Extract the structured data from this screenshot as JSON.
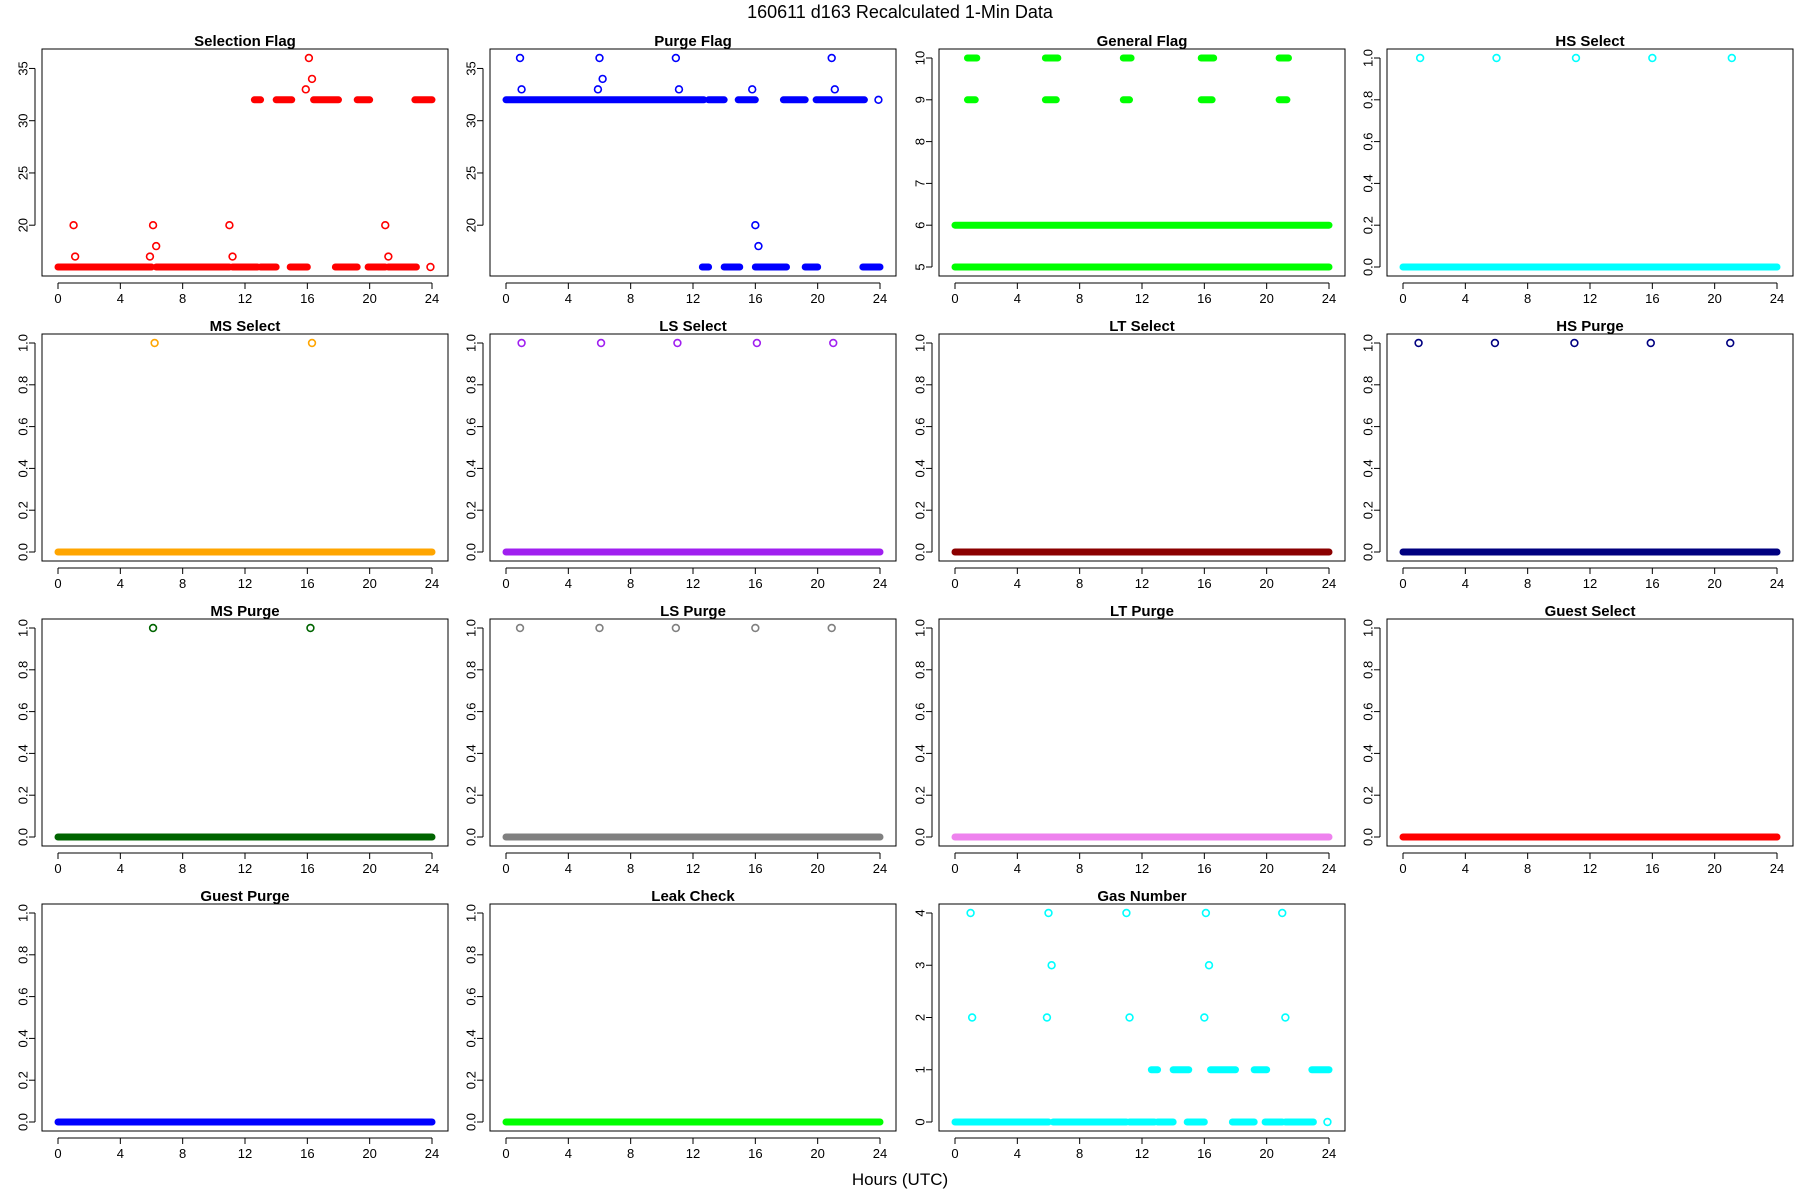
{
  "header": {
    "title": "160611    d163    Recalculated 1-Min Data",
    "xlabel": "Hours (UTC)"
  },
  "chart_data": [
    {
      "type": "scatter",
      "title": "Selection Flag",
      "color": "#ff0000",
      "marker": "open-circle",
      "xlim": [
        0,
        24
      ],
      "xticks": [
        0,
        4,
        8,
        12,
        16,
        20,
        24
      ],
      "ylim": [
        16,
        36
      ],
      "yticks": [
        20,
        25,
        30,
        35
      ],
      "segments": [
        {
          "x": [
            0,
            6
          ],
          "y": 16
        },
        {
          "x": [
            6.3,
            11
          ],
          "y": 16
        },
        {
          "x": [
            11.2,
            12.8
          ],
          "y": 16
        },
        {
          "x": [
            13.0,
            14.0
          ],
          "y": 16
        },
        {
          "x": [
            14.9,
            16.0
          ],
          "y": 16
        },
        {
          "x": [
            17.8,
            19.2
          ],
          "y": 16
        },
        {
          "x": [
            19.9,
            21.0
          ],
          "y": 16
        },
        {
          "x": [
            21.2,
            23.0
          ],
          "y": 16
        },
        {
          "x": [
            12.6,
            13.0
          ],
          "y": 32
        },
        {
          "x": [
            14.0,
            15.0
          ],
          "y": 32
        },
        {
          "x": [
            16.4,
            18.0
          ],
          "y": 32
        },
        {
          "x": [
            19.2,
            20.0
          ],
          "y": 32
        },
        {
          "x": [
            22.9,
            24.0
          ],
          "y": 32
        }
      ],
      "points": [
        {
          "x": 1.0,
          "y": 20
        },
        {
          "x": 1.1,
          "y": 17
        },
        {
          "x": 5.9,
          "y": 17
        },
        {
          "x": 6.1,
          "y": 20
        },
        {
          "x": 6.3,
          "y": 18
        },
        {
          "x": 11.0,
          "y": 20
        },
        {
          "x": 11.2,
          "y": 17
        },
        {
          "x": 15.9,
          "y": 33
        },
        {
          "x": 16.1,
          "y": 36
        },
        {
          "x": 16.3,
          "y": 34
        },
        {
          "x": 21.0,
          "y": 20
        },
        {
          "x": 21.2,
          "y": 17
        },
        {
          "x": 23.9,
          "y": 16
        }
      ]
    },
    {
      "type": "scatter",
      "title": "Purge Flag",
      "color": "#0000ff",
      "marker": "open-circle",
      "xlim": [
        0,
        24
      ],
      "xticks": [
        0,
        4,
        8,
        12,
        16,
        20,
        24
      ],
      "ylim": [
        16,
        36
      ],
      "yticks": [
        20,
        25,
        30,
        35
      ],
      "segments": [
        {
          "x": [
            0,
            12.7
          ],
          "y": 32
        },
        {
          "x": [
            13.0,
            14.0
          ],
          "y": 32
        },
        {
          "x": [
            14.9,
            16.0
          ],
          "y": 32
        },
        {
          "x": [
            17.8,
            19.2
          ],
          "y": 32
        },
        {
          "x": [
            19.9,
            23.0
          ],
          "y": 32
        },
        {
          "x": [
            12.6,
            13.0
          ],
          "y": 16
        },
        {
          "x": [
            14.0,
            15.0
          ],
          "y": 16
        },
        {
          "x": [
            16.0,
            18.0
          ],
          "y": 16
        },
        {
          "x": [
            19.2,
            20.0
          ],
          "y": 16
        },
        {
          "x": [
            22.9,
            24.0
          ],
          "y": 16
        }
      ],
      "points": [
        {
          "x": 0.9,
          "y": 36
        },
        {
          "x": 1.0,
          "y": 33
        },
        {
          "x": 5.9,
          "y": 33
        },
        {
          "x": 6.0,
          "y": 36
        },
        {
          "x": 6.2,
          "y": 34
        },
        {
          "x": 10.9,
          "y": 36
        },
        {
          "x": 11.1,
          "y": 33
        },
        {
          "x": 15.8,
          "y": 33
        },
        {
          "x": 16.0,
          "y": 20
        },
        {
          "x": 16.2,
          "y": 18
        },
        {
          "x": 20.9,
          "y": 36
        },
        {
          "x": 21.1,
          "y": 33
        },
        {
          "x": 23.9,
          "y": 32
        }
      ]
    },
    {
      "type": "scatter",
      "title": "General Flag",
      "color": "#00ff00",
      "marker": "open-circle",
      "xlim": [
        0,
        24
      ],
      "xticks": [
        0,
        4,
        8,
        12,
        16,
        20,
        24
      ],
      "ylim": [
        5,
        10
      ],
      "yticks": [
        5,
        6,
        7,
        8,
        9,
        10
      ],
      "segments": [
        {
          "x": [
            0,
            24
          ],
          "y": 5
        },
        {
          "x": [
            0,
            24
          ],
          "y": 6
        },
        {
          "x": [
            0.8,
            1.4
          ],
          "y": 10
        },
        {
          "x": [
            5.8,
            6.6
          ],
          "y": 10
        },
        {
          "x": [
            10.8,
            11.3
          ],
          "y": 10
        },
        {
          "x": [
            15.8,
            16.6
          ],
          "y": 10
        },
        {
          "x": [
            20.8,
            21.4
          ],
          "y": 10
        },
        {
          "x": [
            0.8,
            1.3
          ],
          "y": 9
        },
        {
          "x": [
            5.8,
            6.5
          ],
          "y": 9
        },
        {
          "x": [
            10.8,
            11.2
          ],
          "y": 9
        },
        {
          "x": [
            15.8,
            16.5
          ],
          "y": 9
        },
        {
          "x": [
            20.8,
            21.3
          ],
          "y": 9
        }
      ],
      "points": []
    },
    {
      "type": "scatter",
      "title": "HS Select",
      "color": "#00ffff",
      "marker": "open-circle",
      "xlim": [
        0,
        24
      ],
      "xticks": [
        0,
        4,
        8,
        12,
        16,
        20,
        24
      ],
      "ylim": [
        0,
        1
      ],
      "yticks": [
        0.0,
        0.2,
        0.4,
        0.6,
        0.8,
        1.0
      ],
      "segments": [
        {
          "x": [
            0,
            24
          ],
          "y": 0
        }
      ],
      "points": [
        {
          "x": 1.1,
          "y": 1
        },
        {
          "x": 6.0,
          "y": 1
        },
        {
          "x": 11.1,
          "y": 1
        },
        {
          "x": 16.0,
          "y": 1
        },
        {
          "x": 21.1,
          "y": 1
        }
      ]
    },
    {
      "type": "scatter",
      "title": "MS Select",
      "color": "#ffa500",
      "marker": "open-circle",
      "xlim": [
        0,
        24
      ],
      "xticks": [
        0,
        4,
        8,
        12,
        16,
        20,
        24
      ],
      "ylim": [
        0,
        1
      ],
      "yticks": [
        0.0,
        0.2,
        0.4,
        0.6,
        0.8,
        1.0
      ],
      "segments": [
        {
          "x": [
            0,
            24
          ],
          "y": 0
        }
      ],
      "points": [
        {
          "x": 6.2,
          "y": 1
        },
        {
          "x": 16.3,
          "y": 1
        }
      ]
    },
    {
      "type": "scatter",
      "title": "LS Select",
      "color": "#a020f0",
      "marker": "open-circle",
      "xlim": [
        0,
        24
      ],
      "xticks": [
        0,
        4,
        8,
        12,
        16,
        20,
        24
      ],
      "ylim": [
        0,
        1
      ],
      "yticks": [
        0.0,
        0.2,
        0.4,
        0.6,
        0.8,
        1.0
      ],
      "segments": [
        {
          "x": [
            0,
            24
          ],
          "y": 0
        }
      ],
      "points": [
        {
          "x": 1.0,
          "y": 1
        },
        {
          "x": 6.1,
          "y": 1
        },
        {
          "x": 11.0,
          "y": 1
        },
        {
          "x": 16.1,
          "y": 1
        },
        {
          "x": 21.0,
          "y": 1
        }
      ]
    },
    {
      "type": "scatter",
      "title": "LT Select",
      "color": "#8b0000",
      "marker": "open-circle",
      "xlim": [
        0,
        24
      ],
      "xticks": [
        0,
        4,
        8,
        12,
        16,
        20,
        24
      ],
      "ylim": [
        0,
        1
      ],
      "yticks": [
        0.0,
        0.2,
        0.4,
        0.6,
        0.8,
        1.0
      ],
      "segments": [
        {
          "x": [
            0,
            24
          ],
          "y": 0
        }
      ],
      "points": []
    },
    {
      "type": "scatter",
      "title": "HS Purge",
      "color": "#000080",
      "marker": "open-circle",
      "xlim": [
        0,
        24
      ],
      "xticks": [
        0,
        4,
        8,
        12,
        16,
        20,
        24
      ],
      "ylim": [
        0,
        1
      ],
      "yticks": [
        0.0,
        0.2,
        0.4,
        0.6,
        0.8,
        1.0
      ],
      "segments": [
        {
          "x": [
            0,
            24
          ],
          "y": 0
        }
      ],
      "points": [
        {
          "x": 1.0,
          "y": 1
        },
        {
          "x": 5.9,
          "y": 1
        },
        {
          "x": 11.0,
          "y": 1
        },
        {
          "x": 15.9,
          "y": 1
        },
        {
          "x": 21.0,
          "y": 1
        }
      ]
    },
    {
      "type": "scatter",
      "title": "MS Purge",
      "color": "#006400",
      "marker": "open-circle",
      "xlim": [
        0,
        24
      ],
      "xticks": [
        0,
        4,
        8,
        12,
        16,
        20,
        24
      ],
      "ylim": [
        0,
        1
      ],
      "yticks": [
        0.0,
        0.2,
        0.4,
        0.6,
        0.8,
        1.0
      ],
      "segments": [
        {
          "x": [
            0,
            24
          ],
          "y": 0
        }
      ],
      "points": [
        {
          "x": 6.1,
          "y": 1
        },
        {
          "x": 16.2,
          "y": 1
        }
      ]
    },
    {
      "type": "scatter",
      "title": "LS Purge",
      "color": "#808080",
      "marker": "open-circle",
      "xlim": [
        0,
        24
      ],
      "xticks": [
        0,
        4,
        8,
        12,
        16,
        20,
        24
      ],
      "ylim": [
        0,
        1
      ],
      "yticks": [
        0.0,
        0.2,
        0.4,
        0.6,
        0.8,
        1.0
      ],
      "segments": [
        {
          "x": [
            0,
            24
          ],
          "y": 0
        }
      ],
      "points": [
        {
          "x": 0.9,
          "y": 1
        },
        {
          "x": 6.0,
          "y": 1
        },
        {
          "x": 10.9,
          "y": 1
        },
        {
          "x": 16.0,
          "y": 1
        },
        {
          "x": 20.9,
          "y": 1
        }
      ]
    },
    {
      "type": "scatter",
      "title": "LT Purge",
      "color": "#ee82ee",
      "marker": "open-circle",
      "xlim": [
        0,
        24
      ],
      "xticks": [
        0,
        4,
        8,
        12,
        16,
        20,
        24
      ],
      "ylim": [
        0,
        1
      ],
      "yticks": [
        0.0,
        0.2,
        0.4,
        0.6,
        0.8,
        1.0
      ],
      "segments": [
        {
          "x": [
            0,
            24
          ],
          "y": 0
        }
      ],
      "points": []
    },
    {
      "type": "scatter",
      "title": "Guest Select",
      "color": "#ff0000",
      "marker": "open-circle",
      "xlim": [
        0,
        24
      ],
      "xticks": [
        0,
        4,
        8,
        12,
        16,
        20,
        24
      ],
      "ylim": [
        0,
        1
      ],
      "yticks": [
        0.0,
        0.2,
        0.4,
        0.6,
        0.8,
        1.0
      ],
      "segments": [
        {
          "x": [
            0,
            24
          ],
          "y": 0
        }
      ],
      "points": []
    },
    {
      "type": "scatter",
      "title": "Guest Purge",
      "color": "#0000ff",
      "marker": "open-circle",
      "xlim": [
        0,
        24
      ],
      "xticks": [
        0,
        4,
        8,
        12,
        16,
        20,
        24
      ],
      "ylim": [
        0,
        1
      ],
      "yticks": [
        0.0,
        0.2,
        0.4,
        0.6,
        0.8,
        1.0
      ],
      "segments": [
        {
          "x": [
            0,
            24
          ],
          "y": 0
        }
      ],
      "points": []
    },
    {
      "type": "scatter",
      "title": "Leak Check",
      "color": "#00ff00",
      "marker": "open-circle",
      "xlim": [
        0,
        24
      ],
      "xticks": [
        0,
        4,
        8,
        12,
        16,
        20,
        24
      ],
      "ylim": [
        0,
        1
      ],
      "yticks": [
        0.0,
        0.2,
        0.4,
        0.6,
        0.8,
        1.0
      ],
      "segments": [
        {
          "x": [
            0,
            24
          ],
          "y": 0
        }
      ],
      "points": []
    },
    {
      "type": "scatter",
      "title": "Gas Number",
      "color": "#00ffff",
      "marker": "open-circle",
      "xlim": [
        0,
        24
      ],
      "xticks": [
        0,
        4,
        8,
        12,
        16,
        20,
        24
      ],
      "ylim": [
        0,
        4
      ],
      "yticks": [
        0,
        1,
        2,
        3,
        4
      ],
      "segments": [
        {
          "x": [
            0,
            6
          ],
          "y": 0
        },
        {
          "x": [
            6.3,
            11
          ],
          "y": 0
        },
        {
          "x": [
            11.2,
            12.8
          ],
          "y": 0
        },
        {
          "x": [
            13.0,
            14.0
          ],
          "y": 0
        },
        {
          "x": [
            14.9,
            16.0
          ],
          "y": 0
        },
        {
          "x": [
            17.8,
            19.2
          ],
          "y": 0
        },
        {
          "x": [
            19.9,
            21.0
          ],
          "y": 0
        },
        {
          "x": [
            21.2,
            23.0
          ],
          "y": 0
        },
        {
          "x": [
            12.6,
            13.0
          ],
          "y": 1
        },
        {
          "x": [
            14.0,
            15.0
          ],
          "y": 1
        },
        {
          "x": [
            16.4,
            18.0
          ],
          "y": 1
        },
        {
          "x": [
            19.2,
            20.0
          ],
          "y": 1
        },
        {
          "x": [
            22.9,
            24.0
          ],
          "y": 1
        }
      ],
      "points": [
        {
          "x": 1.0,
          "y": 4
        },
        {
          "x": 1.1,
          "y": 2
        },
        {
          "x": 6.0,
          "y": 4
        },
        {
          "x": 5.9,
          "y": 2
        },
        {
          "x": 6.2,
          "y": 3
        },
        {
          "x": 11.0,
          "y": 4
        },
        {
          "x": 11.2,
          "y": 2
        },
        {
          "x": 16.1,
          "y": 4
        },
        {
          "x": 16.0,
          "y": 2
        },
        {
          "x": 16.3,
          "y": 3
        },
        {
          "x": 21.0,
          "y": 4
        },
        {
          "x": 21.2,
          "y": 2
        },
        {
          "x": 23.9,
          "y": 0
        }
      ]
    }
  ]
}
